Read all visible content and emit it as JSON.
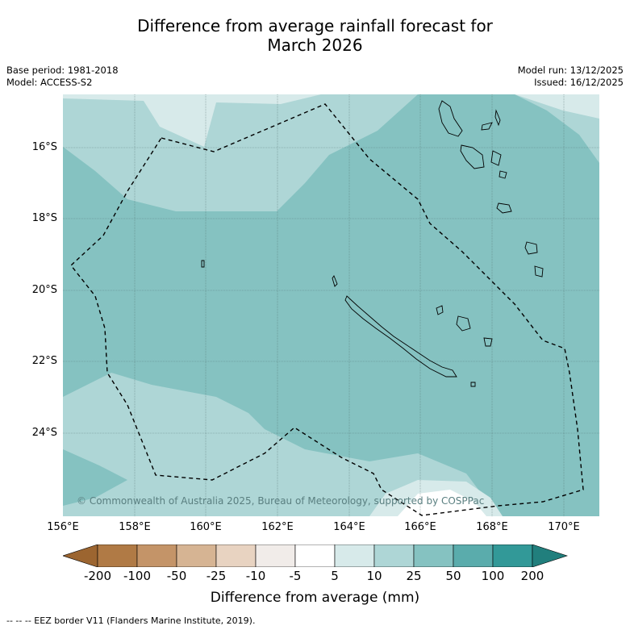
{
  "title_line1": "Difference from average rainfall forecast for",
  "title_line2": "March 2026",
  "meta_left": {
    "base_period": "Base period: 1981-2018",
    "model": "Model: ACCESS-S2"
  },
  "meta_right": {
    "model_run": "Model run: 13/12/2025",
    "issued": "Issued: 16/12/2025"
  },
  "latitude_labels": [
    "16°S",
    "18°S",
    "20°S",
    "22°S",
    "24°S"
  ],
  "longitude_labels": [
    "156°E",
    "158°E",
    "160°E",
    "162°E",
    "164°E",
    "166°E",
    "168°E",
    "170°E"
  ],
  "copyright": "© Commonwealth of Australia 2025, Bureau of Meteorology, supported by COSPPac",
  "colorbar": {
    "title": "Difference from average (mm)",
    "ticks": [
      "-200",
      "-100",
      "-50",
      "-25",
      "-10",
      "-5",
      "5",
      "10",
      "25",
      "50",
      "100",
      "200"
    ],
    "colors": [
      "#9c6530",
      "#b07a45",
      "#c49468",
      "#d6b493",
      "#e8d3c1",
      "#f1ece9",
      "#ffffff",
      "#d7eaea",
      "#aed6d6",
      "#85c2c1",
      "#5aacac",
      "#329998",
      "#217f7d"
    ]
  },
  "map_colors": {
    "band_10_25": "#aed6d6",
    "band_5_10": "#d7eaea",
    "band_25_50": "#85c2c1",
    "band_white": "#ffffff"
  },
  "footer": "--  --  -- EEZ border V11 (Flanders Marine Institute, 2019)."
}
